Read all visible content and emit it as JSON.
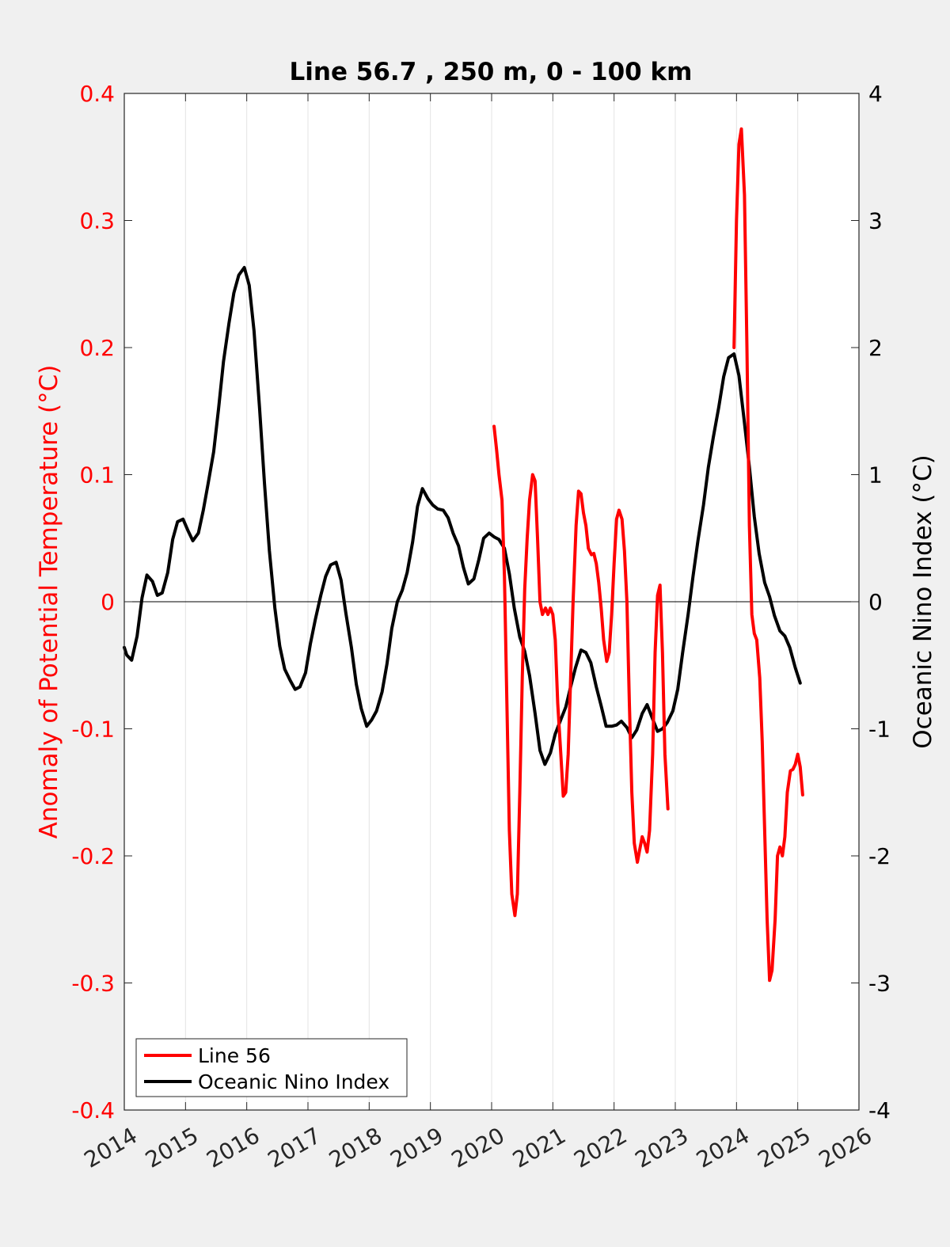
{
  "chart_data": {
    "type": "line",
    "title": "Line 56.7 , 250 m, 0 - 100 km",
    "xlim": [
      2014,
      2026
    ],
    "x_ticks": [
      2014,
      2015,
      2016,
      2017,
      2018,
      2019,
      2020,
      2021,
      2022,
      2023,
      2024,
      2025,
      2026
    ],
    "x_tick_labels": [
      "2014",
      "2015",
      "2016",
      "2017",
      "2018",
      "2019",
      "2020",
      "2021",
      "2022",
      "2023",
      "2024",
      "2025",
      "2026"
    ],
    "left_axis": {
      "label": "Anomaly of Potential Temperature (°C)",
      "ylim": [
        -0.4,
        0.4
      ],
      "ticks": [
        -0.4,
        -0.3,
        -0.2,
        -0.1,
        0,
        0.1,
        0.2,
        0.3,
        0.4
      ],
      "tick_labels": [
        "-0.4",
        "-0.3",
        "-0.2",
        "-0.1",
        "0",
        "0.1",
        "0.2",
        "0.3",
        "0.4"
      ],
      "color": "#ff0000"
    },
    "right_axis": {
      "label": "Oceanic Nino Index (°C)",
      "ylim": [
        -4,
        4
      ],
      "ticks": [
        -4,
        -3,
        -2,
        -1,
        0,
        1,
        2,
        3,
        4
      ],
      "tick_labels": [
        "-4",
        "-3",
        "-2",
        "-1",
        "0",
        "1",
        "2",
        "3",
        "4"
      ],
      "color": "#000000"
    },
    "grid": "vertical",
    "zero_line": true,
    "legend": {
      "position": "bottom-left",
      "entries": [
        {
          "label": "Line 56",
          "color": "#ff0000"
        },
        {
          "label": "Oceanic Nino Index",
          "color": "#000000"
        }
      ]
    },
    "series": [
      {
        "name": "Oceanic Nino Index",
        "axis": "right",
        "color": "#000000",
        "segments": [
          [
            [
              2014.0,
              -0.36
            ],
            [
              2014.04,
              -0.42
            ],
            [
              2014.12,
              -0.46
            ],
            [
              2014.21,
              -0.27
            ],
            [
              2014.29,
              0.03
            ],
            [
              2014.37,
              0.21
            ],
            [
              2014.46,
              0.16
            ],
            [
              2014.54,
              0.05
            ],
            [
              2014.62,
              0.07
            ],
            [
              2014.71,
              0.23
            ],
            [
              2014.79,
              0.49
            ],
            [
              2014.87,
              0.63
            ],
            [
              2014.96,
              0.65
            ],
            [
              2015.04,
              0.56
            ],
            [
              2015.12,
              0.48
            ],
            [
              2015.21,
              0.54
            ],
            [
              2015.29,
              0.72
            ],
            [
              2015.37,
              0.93
            ],
            [
              2015.46,
              1.18
            ],
            [
              2015.54,
              1.52
            ],
            [
              2015.62,
              1.89
            ],
            [
              2015.71,
              2.19
            ],
            [
              2015.79,
              2.43
            ],
            [
              2015.87,
              2.57
            ],
            [
              2015.96,
              2.63
            ],
            [
              2016.04,
              2.49
            ],
            [
              2016.12,
              2.13
            ],
            [
              2016.21,
              1.52
            ],
            [
              2016.29,
              0.93
            ],
            [
              2016.37,
              0.4
            ],
            [
              2016.46,
              -0.05
            ],
            [
              2016.54,
              -0.35
            ],
            [
              2016.62,
              -0.53
            ],
            [
              2016.71,
              -0.62
            ],
            [
              2016.79,
              -0.69
            ],
            [
              2016.87,
              -0.67
            ],
            [
              2016.96,
              -0.56
            ],
            [
              2017.04,
              -0.33
            ],
            [
              2017.12,
              -0.14
            ],
            [
              2017.21,
              0.05
            ],
            [
              2017.29,
              0.2
            ],
            [
              2017.37,
              0.29
            ],
            [
              2017.46,
              0.31
            ],
            [
              2017.54,
              0.17
            ],
            [
              2017.62,
              -0.09
            ],
            [
              2017.71,
              -0.36
            ],
            [
              2017.79,
              -0.65
            ],
            [
              2017.87,
              -0.84
            ],
            [
              2017.96,
              -0.98
            ],
            [
              2018.04,
              -0.93
            ],
            [
              2018.12,
              -0.86
            ],
            [
              2018.21,
              -0.71
            ],
            [
              2018.29,
              -0.49
            ],
            [
              2018.37,
              -0.21
            ],
            [
              2018.46,
              0.0
            ],
            [
              2018.54,
              0.09
            ],
            [
              2018.62,
              0.23
            ],
            [
              2018.71,
              0.47
            ],
            [
              2018.79,
              0.75
            ],
            [
              2018.87,
              0.89
            ],
            [
              2018.96,
              0.81
            ],
            [
              2019.04,
              0.76
            ],
            [
              2019.12,
              0.73
            ],
            [
              2019.21,
              0.72
            ],
            [
              2019.29,
              0.66
            ],
            [
              2019.37,
              0.54
            ],
            [
              2019.46,
              0.44
            ],
            [
              2019.54,
              0.27
            ],
            [
              2019.62,
              0.14
            ],
            [
              2019.71,
              0.18
            ],
            [
              2019.79,
              0.33
            ],
            [
              2019.87,
              0.5
            ],
            [
              2019.96,
              0.54
            ],
            [
              2020.04,
              0.51
            ],
            [
              2020.12,
              0.49
            ],
            [
              2020.21,
              0.42
            ],
            [
              2020.29,
              0.22
            ],
            [
              2020.37,
              -0.05
            ],
            [
              2020.46,
              -0.28
            ],
            [
              2020.54,
              -0.39
            ],
            [
              2020.62,
              -0.58
            ],
            [
              2020.71,
              -0.88
            ],
            [
              2020.79,
              -1.17
            ],
            [
              2020.87,
              -1.28
            ],
            [
              2020.96,
              -1.19
            ],
            [
              2021.04,
              -1.04
            ],
            [
              2021.12,
              -0.94
            ],
            [
              2021.21,
              -0.83
            ],
            [
              2021.29,
              -0.67
            ],
            [
              2021.37,
              -0.52
            ],
            [
              2021.46,
              -0.38
            ],
            [
              2021.54,
              -0.4
            ],
            [
              2021.62,
              -0.48
            ],
            [
              2021.71,
              -0.67
            ],
            [
              2021.79,
              -0.82
            ],
            [
              2021.87,
              -0.98
            ],
            [
              2021.96,
              -0.98
            ],
            [
              2022.04,
              -0.97
            ],
            [
              2022.12,
              -0.94
            ],
            [
              2022.21,
              -0.99
            ],
            [
              2022.29,
              -1.07
            ],
            [
              2022.37,
              -1.01
            ],
            [
              2022.46,
              -0.88
            ],
            [
              2022.54,
              -0.81
            ],
            [
              2022.62,
              -0.91
            ],
            [
              2022.71,
              -1.02
            ],
            [
              2022.79,
              -1.0
            ],
            [
              2022.87,
              -0.95
            ],
            [
              2022.96,
              -0.86
            ],
            [
              2023.04,
              -0.69
            ],
            [
              2023.12,
              -0.4
            ],
            [
              2023.21,
              -0.1
            ],
            [
              2023.29,
              0.2
            ],
            [
              2023.37,
              0.48
            ],
            [
              2023.46,
              0.76
            ],
            [
              2023.54,
              1.06
            ],
            [
              2023.62,
              1.29
            ],
            [
              2023.71,
              1.53
            ],
            [
              2023.79,
              1.77
            ],
            [
              2023.87,
              1.92
            ],
            [
              2023.96,
              1.95
            ],
            [
              2024.04,
              1.78
            ],
            [
              2024.12,
              1.45
            ],
            [
              2024.21,
              1.06
            ],
            [
              2024.29,
              0.67
            ],
            [
              2024.37,
              0.38
            ],
            [
              2024.46,
              0.15
            ],
            [
              2024.54,
              0.04
            ],
            [
              2024.62,
              -0.11
            ],
            [
              2024.71,
              -0.23
            ],
            [
              2024.79,
              -0.27
            ],
            [
              2024.87,
              -0.36
            ],
            [
              2024.96,
              -0.52
            ],
            [
              2025.04,
              -0.64
            ]
          ]
        ]
      },
      {
        "name": "Line 56",
        "axis": "left",
        "color": "#ff0000",
        "segments": [
          [
            [
              2020.04,
              0.138
            ],
            [
              2020.08,
              0.12
            ],
            [
              2020.12,
              0.1
            ],
            [
              2020.17,
              0.08
            ],
            [
              2020.21,
              0.02
            ],
            [
              2020.25,
              -0.08
            ],
            [
              2020.29,
              -0.18
            ],
            [
              2020.33,
              -0.23
            ],
            [
              2020.38,
              -0.247
            ],
            [
              2020.42,
              -0.23
            ],
            [
              2020.46,
              -0.15
            ],
            [
              2020.5,
              -0.06
            ],
            [
              2020.54,
              0.01
            ],
            [
              2020.58,
              0.05
            ],
            [
              2020.62,
              0.08
            ],
            [
              2020.67,
              0.1
            ],
            [
              2020.71,
              0.095
            ],
            [
              2020.75,
              0.05
            ],
            [
              2020.79,
              0.0
            ],
            [
              2020.83,
              -0.01
            ],
            [
              2020.88,
              -0.005
            ],
            [
              2020.92,
              -0.01
            ],
            [
              2020.96,
              -0.005
            ],
            [
              2021.0,
              -0.01
            ],
            [
              2021.04,
              -0.03
            ],
            [
              2021.08,
              -0.08
            ],
            [
              2021.13,
              -0.12
            ],
            [
              2021.17,
              -0.153
            ],
            [
              2021.21,
              -0.15
            ],
            [
              2021.25,
              -0.12
            ],
            [
              2021.29,
              -0.06
            ],
            [
              2021.33,
              0.0
            ],
            [
              2021.38,
              0.06
            ],
            [
              2021.42,
              0.087
            ],
            [
              2021.46,
              0.085
            ],
            [
              2021.5,
              0.07
            ],
            [
              2021.54,
              0.06
            ],
            [
              2021.58,
              0.042
            ],
            [
              2021.63,
              0.037
            ],
            [
              2021.67,
              0.038
            ],
            [
              2021.71,
              0.03
            ],
            [
              2021.75,
              0.015
            ],
            [
              2021.79,
              -0.005
            ],
            [
              2021.83,
              -0.03
            ],
            [
              2021.88,
              -0.047
            ],
            [
              2021.92,
              -0.04
            ],
            [
              2021.96,
              -0.01
            ],
            [
              2022.0,
              0.03
            ],
            [
              2022.04,
              0.065
            ],
            [
              2022.08,
              0.072
            ],
            [
              2022.13,
              0.065
            ],
            [
              2022.17,
              0.04
            ],
            [
              2022.21,
              0.0
            ],
            [
              2022.25,
              -0.08
            ],
            [
              2022.29,
              -0.15
            ],
            [
              2022.33,
              -0.19
            ],
            [
              2022.38,
              -0.205
            ],
            [
              2022.42,
              -0.195
            ],
            [
              2022.46,
              -0.185
            ],
            [
              2022.5,
              -0.19
            ],
            [
              2022.54,
              -0.197
            ],
            [
              2022.58,
              -0.18
            ],
            [
              2022.63,
              -0.12
            ],
            [
              2022.67,
              -0.04
            ],
            [
              2022.71,
              0.005
            ],
            [
              2022.75,
              0.013
            ],
            [
              2022.79,
              -0.04
            ],
            [
              2022.83,
              -0.12
            ],
            [
              2022.88,
              -0.163
            ]
          ],
          [
            [
              2023.96,
              0.2
            ],
            [
              2024.0,
              0.3
            ],
            [
              2024.04,
              0.36
            ],
            [
              2024.08,
              0.372
            ],
            [
              2024.13,
              0.32
            ],
            [
              2024.17,
              0.2
            ],
            [
              2024.21,
              0.06
            ],
            [
              2024.25,
              -0.01
            ],
            [
              2024.29,
              -0.025
            ],
            [
              2024.33,
              -0.03
            ],
            [
              2024.38,
              -0.06
            ],
            [
              2024.42,
              -0.11
            ],
            [
              2024.46,
              -0.18
            ],
            [
              2024.5,
              -0.25
            ],
            [
              2024.54,
              -0.298
            ],
            [
              2024.58,
              -0.29
            ],
            [
              2024.63,
              -0.25
            ],
            [
              2024.67,
              -0.2
            ],
            [
              2024.71,
              -0.193
            ],
            [
              2024.75,
              -0.2
            ],
            [
              2024.79,
              -0.185
            ],
            [
              2024.83,
              -0.15
            ],
            [
              2024.88,
              -0.133
            ],
            [
              2024.92,
              -0.132
            ],
            [
              2024.96,
              -0.128
            ],
            [
              2025.0,
              -0.12
            ],
            [
              2025.04,
              -0.13
            ],
            [
              2025.08,
              -0.152
            ]
          ]
        ]
      }
    ]
  }
}
